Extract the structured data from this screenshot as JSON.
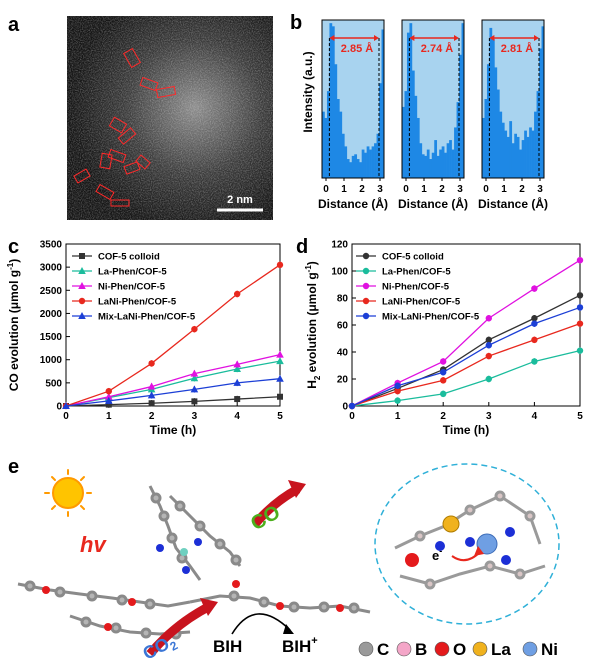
{
  "panels": {
    "a": {
      "label": "a",
      "scalebar": "2 nm"
    },
    "b": {
      "label": "b",
      "y_label": "Intensity (a.u.)",
      "x_label": "Distance (Å)",
      "ticks": [
        "0",
        "1",
        "2",
        "3"
      ],
      "subplots": [
        {
          "annotation": "2.85 Å",
          "bars": [
            0.42,
            0.38,
            0.55,
            0.98,
            0.96,
            0.72,
            0.5,
            0.42,
            0.28,
            0.2,
            0.12,
            0.1,
            0.14,
            0.15,
            0.12,
            0.1,
            0.18,
            0.16,
            0.2,
            0.18,
            0.2,
            0.22,
            0.28,
            0.6,
            0.94
          ]
        },
        {
          "annotation": "2.74 Å",
          "bars": [
            0.45,
            0.55,
            0.92,
            0.98,
            0.68,
            0.52,
            0.38,
            0.22,
            0.15,
            0.14,
            0.18,
            0.12,
            0.16,
            0.24,
            0.14,
            0.18,
            0.2,
            0.16,
            0.22,
            0.24,
            0.18,
            0.32,
            0.48,
            0.78,
            0.98
          ]
        },
        {
          "annotation": "2.81 Å",
          "bars": [
            0.38,
            0.5,
            0.72,
            0.95,
            0.88,
            0.7,
            0.56,
            0.42,
            0.35,
            0.3,
            0.26,
            0.36,
            0.22,
            0.28,
            0.26,
            0.18,
            0.24,
            0.3,
            0.26,
            0.32,
            0.3,
            0.42,
            0.55,
            0.82,
            0.96
          ]
        }
      ]
    },
    "c": {
      "label": "c"
    },
    "d": {
      "label": "d"
    },
    "e": {
      "label": "e",
      "hv": "hv",
      "co": "CO",
      "co2": "CO",
      "co2_sub": "2",
      "bih": "BIH",
      "bihplus": "BIH",
      "bihplus_sup": "+",
      "electron": "e",
      "electron_sup": "-",
      "legend": [
        {
          "label": "C",
          "color": "#9a9a9a"
        },
        {
          "label": "B",
          "color": "#f4a6c8"
        },
        {
          "label": "O",
          "color": "#e41a1c"
        },
        {
          "label": "La",
          "color": "#f0b21e"
        },
        {
          "label": "Ni",
          "color": "#6f9fe3"
        }
      ]
    }
  },
  "chart_data": [
    {
      "type": "line",
      "xlabel": "Time (h)",
      "ylabel": "CO evolution (μmol g",
      "ylabel_sup": "-1",
      "ylabel_end": ")",
      "xlim": [
        0,
        5
      ],
      "ylim": [
        0,
        3500
      ],
      "xticks": [
        "0",
        "1",
        "2",
        "3",
        "4",
        "5"
      ],
      "yticks": [
        "0",
        "500",
        "1000",
        "1500",
        "2000",
        "2500",
        "3000",
        "3500"
      ],
      "x": [
        0,
        1,
        2,
        3,
        4,
        5
      ],
      "series": [
        {
          "name": "COF-5 colloid",
          "color": "#333333",
          "marker": "square",
          "values": [
            0,
            30,
            60,
            100,
            150,
            200
          ]
        },
        {
          "name": "La-Phen/COF-5",
          "color": "#1abc9c",
          "marker": "triangle",
          "values": [
            0,
            180,
            360,
            600,
            800,
            970
          ]
        },
        {
          "name": "Ni-Phen/COF-5",
          "color": "#e011e0",
          "marker": "triangle",
          "values": [
            0,
            200,
            420,
            700,
            900,
            1110
          ]
        },
        {
          "name": "LaNi-Phen/COF-5",
          "color": "#e8281e",
          "marker": "circle",
          "values": [
            0,
            320,
            920,
            1660,
            2420,
            3050
          ]
        },
        {
          "name": "Mix-LaNi-Phen/COF-5",
          "color": "#1c3fd6",
          "marker": "triangle",
          "values": [
            0,
            110,
            230,
            360,
            500,
            590
          ]
        }
      ]
    },
    {
      "type": "line",
      "xlabel": "Time (h)",
      "ylabel": "H",
      "ylabel_sub": "2",
      "ylabel_rest": " evolution (μmol g",
      "ylabel_sup": "-1",
      "ylabel_end": ")",
      "xlim": [
        0,
        5
      ],
      "ylim": [
        0,
        120
      ],
      "xticks": [
        "0",
        "1",
        "2",
        "3",
        "4",
        "5"
      ],
      "yticks": [
        "0",
        "20",
        "40",
        "60",
        "80",
        "100",
        "120"
      ],
      "x": [
        0,
        1,
        2,
        3,
        4,
        5
      ],
      "series": [
        {
          "name": "COF-5 colloid",
          "color": "#333333",
          "marker": "circle",
          "values": [
            0,
            13,
            27,
            49,
            65,
            82
          ]
        },
        {
          "name": "La-Phen/COF-5",
          "color": "#1abc9c",
          "marker": "circle",
          "values": [
            0,
            4,
            9,
            20,
            33,
            41
          ]
        },
        {
          "name": "Ni-Phen/COF-5",
          "color": "#e011e0",
          "marker": "circle",
          "values": [
            0,
            17,
            33,
            65,
            87,
            108
          ]
        },
        {
          "name": "LaNi-Phen/COF-5",
          "color": "#e8281e",
          "marker": "circle",
          "values": [
            0,
            11,
            19,
            37,
            49,
            61
          ]
        },
        {
          "name": "Mix-LaNi-Phen/COF-5",
          "color": "#1c3fd6",
          "marker": "circle",
          "values": [
            0,
            15,
            25,
            45,
            61,
            73
          ]
        }
      ]
    }
  ]
}
